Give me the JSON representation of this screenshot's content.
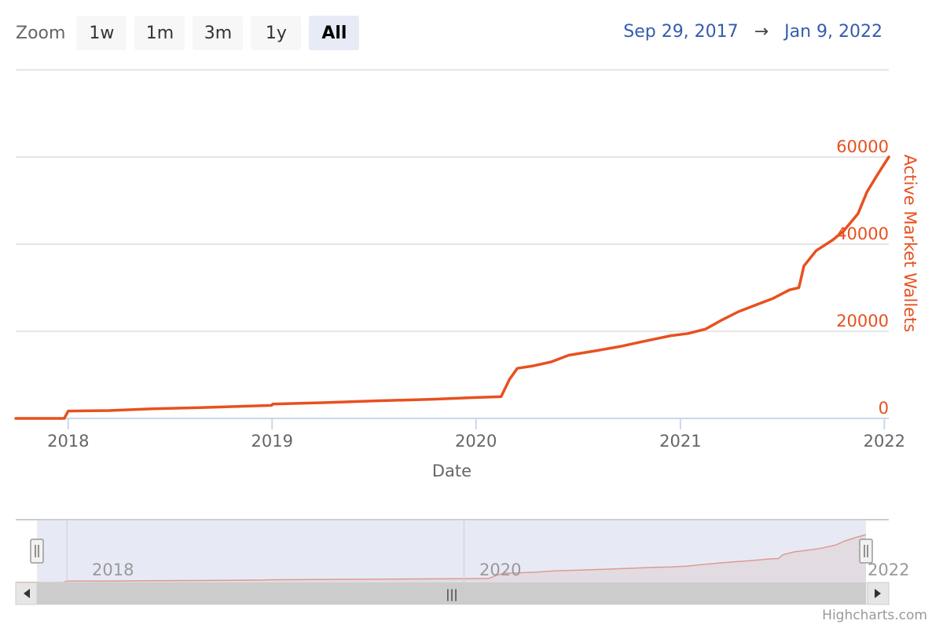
{
  "zoom": {
    "label": "Zoom",
    "buttons": [
      {
        "label": "1w",
        "active": false
      },
      {
        "label": "1m",
        "active": false
      },
      {
        "label": "3m",
        "active": false
      },
      {
        "label": "1y",
        "active": false
      },
      {
        "label": "All",
        "active": true
      }
    ]
  },
  "range": {
    "from": "Sep 29, 2017",
    "arrow": "→",
    "to": "Jan 9, 2022"
  },
  "credit": "Highcharts.com",
  "colors": {
    "series": "#e8501f",
    "axis_label": "#e8501f",
    "navigator_mask": "#d3d9ec"
  },
  "navigator": {
    "labels": [
      "2018",
      "2020",
      "2022"
    ],
    "scrollbar_grip": "|||"
  },
  "chart_data": {
    "type": "line",
    "xlabel": "Date",
    "ylabel": "Active Market Wallets",
    "x_ticks": [
      "2018",
      "2019",
      "2020",
      "2021",
      "2022"
    ],
    "y_ticks": [
      0,
      20000,
      40000,
      60000
    ],
    "ylim": [
      0,
      80000
    ],
    "xlim": [
      "2017-09-29",
      "2022-01-09"
    ],
    "grid": true,
    "legend": "none",
    "series": [
      {
        "points": [
          [
            "2017-09-29",
            0
          ],
          [
            "2017-12-25",
            0
          ],
          [
            "2018-01-01",
            1700
          ],
          [
            "2018-03-15",
            1800
          ],
          [
            "2018-06-01",
            2200
          ],
          [
            "2018-09-01",
            2500
          ],
          [
            "2018-12-31",
            3000
          ],
          [
            "2019-01-02",
            3300
          ],
          [
            "2019-04-01",
            3600
          ],
          [
            "2019-07-01",
            4000
          ],
          [
            "2019-10-15",
            4400
          ],
          [
            "2019-12-31",
            4800
          ],
          [
            "2020-02-15",
            5000
          ],
          [
            "2020-03-01",
            9000
          ],
          [
            "2020-03-15",
            11500
          ],
          [
            "2020-04-10",
            12000
          ],
          [
            "2020-05-15",
            13000
          ],
          [
            "2020-06-15",
            14500
          ],
          [
            "2020-08-01",
            15500
          ],
          [
            "2020-09-15",
            16500
          ],
          [
            "2020-10-20",
            17500
          ],
          [
            "2020-12-15",
            19000
          ],
          [
            "2021-01-15",
            19500
          ],
          [
            "2021-02-15",
            20500
          ],
          [
            "2021-03-15",
            22500
          ],
          [
            "2021-04-15",
            24500
          ],
          [
            "2021-05-15",
            26000
          ],
          [
            "2021-06-15",
            27500
          ],
          [
            "2021-07-15",
            29500
          ],
          [
            "2021-08-01",
            30000
          ],
          [
            "2021-08-10",
            35000
          ],
          [
            "2021-09-01",
            38500
          ],
          [
            "2021-10-01",
            41000
          ],
          [
            "2021-10-20",
            43000
          ],
          [
            "2021-11-15",
            47000
          ],
          [
            "2021-12-01",
            52000
          ],
          [
            "2021-12-20",
            56000
          ],
          [
            "2022-01-09",
            60000
          ]
        ]
      }
    ]
  }
}
